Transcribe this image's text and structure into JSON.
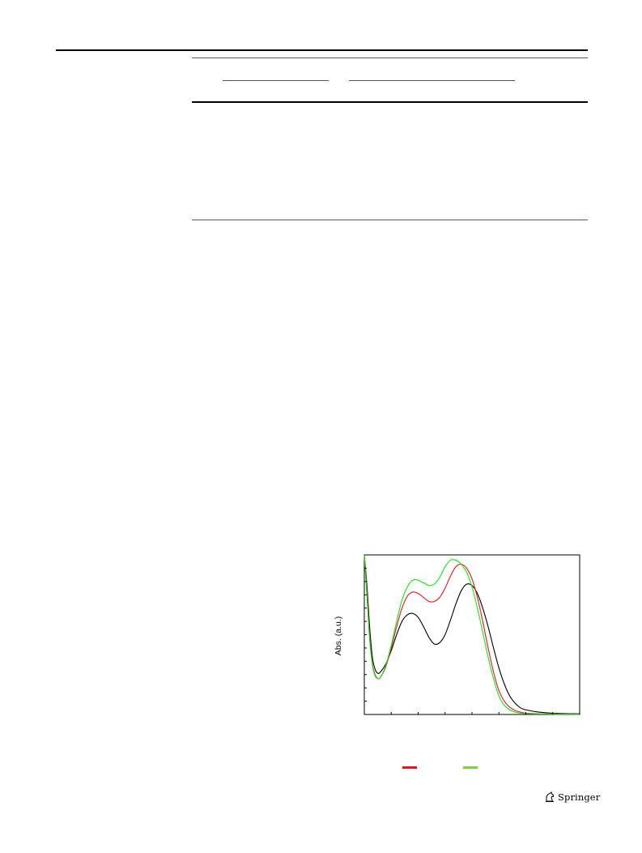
{
  "chart_data": {
    "type": "line",
    "ylabel": "Abs. (a.u.)",
    "xlim": [
      0,
      8
    ],
    "ylim": [
      0,
      12
    ],
    "x_ticks": [
      0,
      1,
      2,
      3,
      4,
      5,
      6,
      7,
      8
    ],
    "y_ticks": [
      0,
      1,
      2,
      3,
      4,
      5,
      6,
      7,
      8,
      9,
      10,
      11,
      12
    ],
    "grid": false,
    "series": [
      {
        "color": "#000000",
        "x": [
          0,
          0.1,
          0.2,
          0.3,
          0.4,
          0.5,
          0.6,
          0.8,
          1.0,
          1.2,
          1.4,
          1.6,
          1.8,
          2.0,
          2.2,
          2.4,
          2.6,
          2.8,
          3.0,
          3.2,
          3.4,
          3.6,
          3.8,
          4.0,
          4.2,
          4.4,
          4.6,
          4.8,
          5.0,
          5.2,
          5.4,
          5.6,
          5.8,
          6.0,
          6.4,
          6.8,
          7.2,
          7.6,
          8.0
        ],
        "y": [
          12.0,
          9.6,
          6.5,
          4.3,
          3.4,
          3.1,
          3.2,
          3.8,
          4.8,
          6.0,
          7.0,
          7.5,
          7.6,
          7.3,
          6.6,
          5.8,
          5.3,
          5.4,
          6.0,
          7.1,
          8.3,
          9.3,
          9.8,
          9.7,
          9.1,
          8.0,
          6.6,
          5.0,
          3.5,
          2.3,
          1.4,
          0.85,
          0.5,
          0.35,
          0.2,
          0.12,
          0.08,
          0.06,
          0.05
        ]
      },
      {
        "color": "#e8161b",
        "x": [
          0,
          0.1,
          0.2,
          0.3,
          0.4,
          0.5,
          0.6,
          0.8,
          1.0,
          1.2,
          1.4,
          1.6,
          1.8,
          2.0,
          2.2,
          2.4,
          2.6,
          2.8,
          3.0,
          3.2,
          3.4,
          3.6,
          3.8,
          4.0,
          4.2,
          4.4,
          4.6,
          4.8,
          5.0,
          5.2,
          5.4,
          5.6,
          5.8,
          6.0,
          6.4,
          6.8,
          7.2,
          7.6,
          8.0
        ],
        "y": [
          12.0,
          9.0,
          5.8,
          3.8,
          3.0,
          2.7,
          2.8,
          3.6,
          5.0,
          6.6,
          8.0,
          8.9,
          9.2,
          9.1,
          8.8,
          8.5,
          8.5,
          8.8,
          9.5,
          10.4,
          11.1,
          11.3,
          11.0,
          10.2,
          8.8,
          7.0,
          5.0,
          3.2,
          1.8,
          1.0,
          0.55,
          0.3,
          0.18,
          0.1,
          0.06,
          0.04,
          0.03,
          0.03,
          0.02
        ]
      },
      {
        "color": "#19e319",
        "x": [
          0,
          0.1,
          0.2,
          0.3,
          0.4,
          0.5,
          0.6,
          0.8,
          1.0,
          1.2,
          1.4,
          1.6,
          1.8,
          2.0,
          2.2,
          2.4,
          2.6,
          2.8,
          3.0,
          3.2,
          3.4,
          3.6,
          3.8,
          4.0,
          4.2,
          4.4,
          4.6,
          4.8,
          5.0,
          5.2,
          5.4,
          5.6,
          5.8,
          6.0,
          6.4,
          6.8,
          7.2,
          7.6,
          8.0
        ],
        "y": [
          12.0,
          8.8,
          5.6,
          3.7,
          2.9,
          2.7,
          2.8,
          3.7,
          5.2,
          7.0,
          8.6,
          9.6,
          10.1,
          10.1,
          9.9,
          9.7,
          9.8,
          10.3,
          11.1,
          11.6,
          11.6,
          11.3,
          10.7,
          9.6,
          8.0,
          6.2,
          4.3,
          2.7,
          1.4,
          0.7,
          0.35,
          0.18,
          0.1,
          0.06,
          0.04,
          0.03,
          0.02,
          0.02,
          0.02
        ]
      }
    ],
    "legend_swatches": [
      {
        "color": "#e8161b"
      },
      {
        "color": "#7fd13b"
      }
    ]
  },
  "footer": {
    "publisher": "Springer"
  }
}
